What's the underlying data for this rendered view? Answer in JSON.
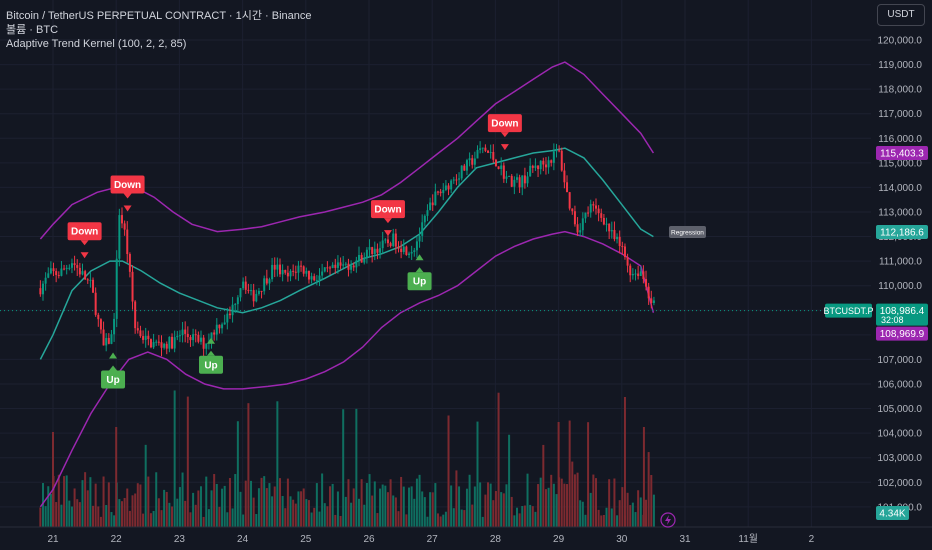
{
  "header": {
    "symbol_line": "Bitcoin / TetherUS PERPETUAL CONTRACT · 1시간 · Binance",
    "volume_line": "볼륨 · BTC",
    "indicator_line": "Adaptive Trend Kernel (100, 2, 2, 85)"
  },
  "currency_button": "USDT",
  "colors": {
    "background": "#131722",
    "grid": "#1c2030",
    "upper_band": "#9c27b0",
    "lower_band": "#9c27b0",
    "mid_line": "#26a69a",
    "candle_up": "#089981",
    "candle_down": "#f23645",
    "vol_up": "#0f6f60",
    "vol_down": "#7d2a30",
    "signal_down": "#f23645",
    "signal_up": "#4caf50"
  },
  "chart_data": {
    "type": "candlestick",
    "x_axis_labels": [
      "21",
      "22",
      "23",
      "24",
      "25",
      "26",
      "27",
      "28",
      "29",
      "30",
      "31",
      "11월",
      "2"
    ],
    "price_ticks": [
      "120,000.0",
      "119,000.0",
      "118,000.0",
      "117,000.0",
      "116,000.0",
      "115,000.0",
      "114,000.0",
      "113,000.0",
      "112,000.0",
      "111,000.0",
      "110,000.0",
      "109,000.0",
      "108,000.0",
      "107,000.0",
      "106,000.0",
      "105,000.0",
      "104,000.0",
      "103,000.0",
      "102,000.0",
      "101,000.0"
    ],
    "ylim": [
      100700,
      120600
    ],
    "upper_band": [
      [
        20.8,
        111900
      ],
      [
        21.0,
        112500
      ],
      [
        21.3,
        113300
      ],
      [
        21.7,
        113800
      ],
      [
        22.0,
        114000
      ],
      [
        22.3,
        114000
      ],
      [
        22.6,
        113600
      ],
      [
        22.9,
        113000
      ],
      [
        23.2,
        112500
      ],
      [
        23.6,
        112200
      ],
      [
        24.0,
        112300
      ],
      [
        24.3,
        112400
      ],
      [
        24.6,
        112600
      ],
      [
        24.9,
        112800
      ],
      [
        25.3,
        113000
      ],
      [
        25.6,
        113200
      ],
      [
        25.9,
        113400
      ],
      [
        26.2,
        113700
      ],
      [
        26.5,
        114200
      ],
      [
        26.8,
        114800
      ],
      [
        27.1,
        115400
      ],
      [
        27.4,
        116000
      ],
      [
        27.7,
        116700
      ],
      [
        28.0,
        117400
      ],
      [
        28.3,
        117900
      ],
      [
        28.6,
        118400
      ],
      [
        28.9,
        118900
      ],
      [
        29.1,
        119100
      ],
      [
        29.4,
        118600
      ],
      [
        29.7,
        117800
      ],
      [
        30.0,
        117000
      ],
      [
        30.3,
        116200
      ],
      [
        30.5,
        115400
      ]
    ],
    "mid_line": [
      [
        20.8,
        107000
      ],
      [
        21.0,
        108000
      ],
      [
        21.3,
        109800
      ],
      [
        21.6,
        110600
      ],
      [
        21.9,
        111000
      ],
      [
        22.1,
        111000
      ],
      [
        22.4,
        110600
      ],
      [
        22.7,
        110100
      ],
      [
        23.0,
        109700
      ],
      [
        23.3,
        109400
      ],
      [
        23.6,
        109100
      ],
      [
        24.0,
        108900
      ],
      [
        24.3,
        109100
      ],
      [
        24.6,
        109400
      ],
      [
        24.9,
        109800
      ],
      [
        25.3,
        110300
      ],
      [
        25.6,
        110700
      ],
      [
        25.9,
        111100
      ],
      [
        26.2,
        111300
      ],
      [
        26.5,
        111600
      ],
      [
        26.8,
        112100
      ],
      [
        27.1,
        113000
      ],
      [
        27.4,
        114000
      ],
      [
        27.7,
        114800
      ],
      [
        28.0,
        115000
      ],
      [
        28.3,
        115200
      ],
      [
        28.6,
        115400
      ],
      [
        28.9,
        115500
      ],
      [
        29.1,
        115600
      ],
      [
        29.4,
        115200
      ],
      [
        29.7,
        114300
      ],
      [
        30.0,
        113300
      ],
      [
        30.3,
        112300
      ],
      [
        30.5,
        112000
      ]
    ],
    "lower_band": [
      [
        20.8,
        101000
      ],
      [
        21.0,
        101700
      ],
      [
        21.3,
        103300
      ],
      [
        21.6,
        104800
      ],
      [
        21.9,
        106000
      ],
      [
        22.2,
        107000
      ],
      [
        22.5,
        107300
      ],
      [
        22.8,
        107000
      ],
      [
        23.1,
        106400
      ],
      [
        23.4,
        106000
      ],
      [
        23.7,
        105800
      ],
      [
        24.0,
        105800
      ],
      [
        24.4,
        105900
      ],
      [
        24.7,
        106000
      ],
      [
        25.0,
        106200
      ],
      [
        25.3,
        106500
      ],
      [
        25.6,
        106900
      ],
      [
        25.9,
        107500
      ],
      [
        26.2,
        108300
      ],
      [
        26.5,
        108900
      ],
      [
        26.8,
        109300
      ],
      [
        27.1,
        109600
      ],
      [
        27.4,
        110000
      ],
      [
        27.7,
        110600
      ],
      [
        28.0,
        111200
      ],
      [
        28.3,
        111600
      ],
      [
        28.6,
        111900
      ],
      [
        28.9,
        112100
      ],
      [
        29.1,
        112200
      ],
      [
        29.4,
        112000
      ],
      [
        29.7,
        111700
      ],
      [
        30.0,
        111300
      ],
      [
        30.3,
        110800
      ],
      [
        30.5,
        108900
      ]
    ],
    "close_path": [
      [
        20.8,
        109900
      ],
      [
        20.95,
        110500
      ],
      [
        21.1,
        110500
      ],
      [
        21.3,
        111000
      ],
      [
        21.45,
        110500
      ],
      [
        21.6,
        110000
      ],
      [
        21.8,
        107500
      ],
      [
        21.95,
        108000
      ],
      [
        22.05,
        113000
      ],
      [
        22.15,
        112000
      ],
      [
        22.3,
        108300
      ],
      [
        22.5,
        107700
      ],
      [
        22.7,
        107600
      ],
      [
        22.9,
        107700
      ],
      [
        23.05,
        108100
      ],
      [
        23.2,
        107900
      ],
      [
        23.4,
        107600
      ],
      [
        23.6,
        108400
      ],
      [
        23.8,
        108800
      ],
      [
        24.0,
        110300
      ],
      [
        24.15,
        109500
      ],
      [
        24.3,
        110000
      ],
      [
        24.5,
        110800
      ],
      [
        24.7,
        110300
      ],
      [
        24.9,
        110800
      ],
      [
        25.1,
        110300
      ],
      [
        25.3,
        110500
      ],
      [
        25.5,
        110700
      ],
      [
        25.8,
        111000
      ],
      [
        26.0,
        111400
      ],
      [
        26.2,
        111600
      ],
      [
        26.4,
        111900
      ],
      [
        26.55,
        111500
      ],
      [
        26.7,
        111500
      ],
      [
        26.85,
        112400
      ],
      [
        27.0,
        113500
      ],
      [
        27.2,
        114000
      ],
      [
        27.4,
        114500
      ],
      [
        27.6,
        115000
      ],
      [
        27.8,
        115600
      ],
      [
        28.0,
        115100
      ],
      [
        28.2,
        114300
      ],
      [
        28.4,
        114200
      ],
      [
        28.6,
        114800
      ],
      [
        28.8,
        115000
      ],
      [
        29.0,
        115500
      ],
      [
        29.15,
        113500
      ],
      [
        29.3,
        112300
      ],
      [
        29.5,
        113200
      ],
      [
        29.7,
        112800
      ],
      [
        29.85,
        112000
      ],
      [
        30.0,
        111500
      ],
      [
        30.15,
        110500
      ],
      [
        30.3,
        110600
      ],
      [
        30.45,
        109500
      ],
      [
        30.55,
        109000
      ]
    ],
    "last_price": "108,986.4",
    "last_price_label": "BTCUSDT.P",
    "countdown": "32:08",
    "upper_value": "115,403.3",
    "mid_value": "112,186.6",
    "lower_value": "108,969.9",
    "regression_label": "Regression",
    "volume_label": "4.34K",
    "signals": [
      {
        "type": "down",
        "label": "Down",
        "x": 21.5,
        "price": 111200
      },
      {
        "type": "down",
        "label": "Down",
        "x": 22.18,
        "price": 113100
      },
      {
        "type": "down",
        "label": "Down",
        "x": 26.3,
        "price": 112100
      },
      {
        "type": "down",
        "label": "Down",
        "x": 28.15,
        "price": 115600
      },
      {
        "type": "up",
        "label": "Up",
        "x": 21.95,
        "price": 107200
      },
      {
        "type": "up",
        "label": "Up",
        "x": 23.5,
        "price": 107800
      },
      {
        "type": "up",
        "label": "Up",
        "x": 26.8,
        "price": 111200
      }
    ]
  }
}
